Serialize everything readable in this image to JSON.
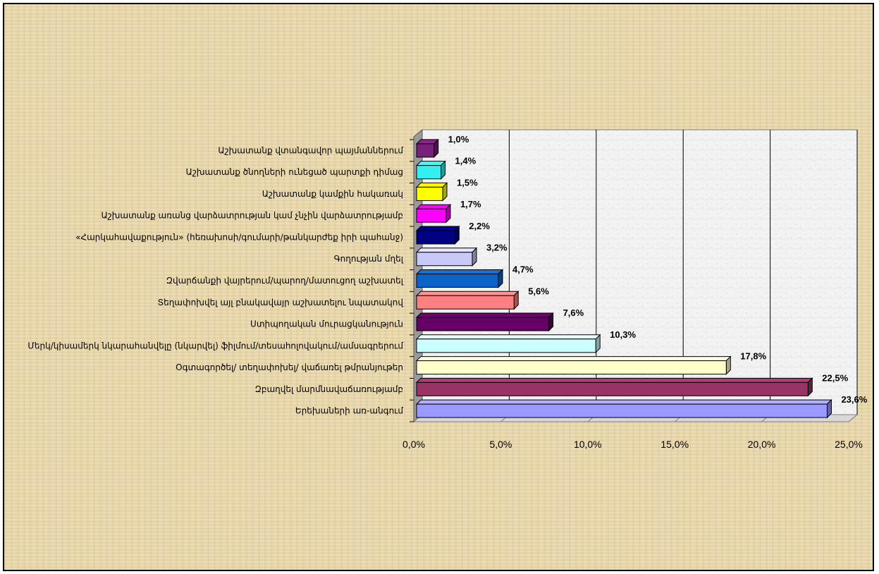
{
  "chart_data": {
    "type": "bar",
    "orientation": "horizontal",
    "style": "3d",
    "title": "",
    "xlabel": "",
    "ylabel": "",
    "xlim": [
      0,
      25
    ],
    "x_tick_labels": [
      "0,0%",
      "5,0%",
      "10,0%",
      "15,0%",
      "20,0%",
      "25,0%"
    ],
    "grid": true,
    "legend": "none",
    "categories": [
      "Աշխատանք վտանգավոր պայմաններում",
      "Աշխատանք  ծնողների ունեցած պարտքի դիմաց",
      "Աշխատանք կամքին հակառակ",
      "Աշխատանք  առանց վարձատրության կամ չնչին վարձատրությամբ",
      "«Հարկահավաքություն» (հեռախոսի/գումարի/թանկարժեք իրի պահանջ)",
      "Գողության մղել",
      "Զվարճանքի վայրերում/պարող/մատուցող աշխատել",
      "Տեղափոխվել  այլ բնակավայր աշխատելու նպատակով",
      "Ստիպողական  մուրացկանություն",
      "Մերկ/կիսամերկ նկարահանվելը (նկարվել) ֆիլմում/տեսահոլովակում/ամսագրերում",
      "Օգտագործել/ տեղափոխել/ վաճառել  թմրանյութեր",
      "Զբաղվել մարմնավաճառությամբ",
      "Երեխաների առ-անգում"
    ],
    "values": [
      1.0,
      1.4,
      1.5,
      1.7,
      2.2,
      3.2,
      4.7,
      5.6,
      7.6,
      10.3,
      17.8,
      22.5,
      23.6
    ],
    "value_labels": [
      "1,0%",
      "1,4%",
      "1,5%",
      "1,7%",
      "2,2%",
      "3,2%",
      "4,7%",
      "5,6%",
      "7,6%",
      "10,3%",
      "17,8%",
      "22,5%",
      "23,6%"
    ],
    "colors": [
      "#7a1f7a",
      "#33f0f0",
      "#ffff00",
      "#ff00ff",
      "#000080",
      "#c8c8f8",
      "#0a64c8",
      "#ff8080",
      "#660066",
      "#ccffff",
      "#ffffc8",
      "#993366",
      "#9999ff"
    ]
  }
}
